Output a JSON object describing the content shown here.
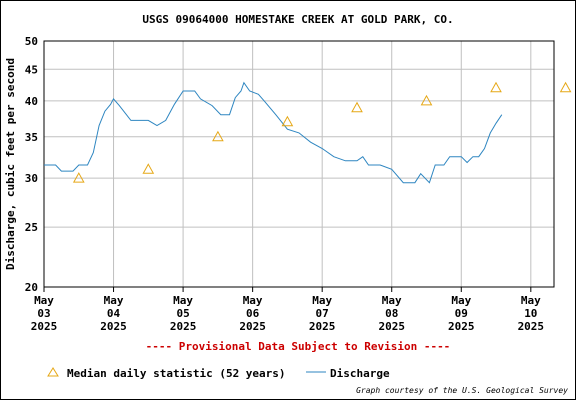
{
  "chart_data": {
    "type": "line",
    "title": "USGS 09064000 HOMESTAKE CREEK AT GOLD PARK, CO.",
    "ylabel": "Discharge, cubic feet per second",
    "yscale": "log",
    "ylim": [
      20,
      50
    ],
    "yticks": [
      20,
      25,
      30,
      35,
      40,
      45,
      50
    ],
    "xlim": [
      "2025-05-03T00:00",
      "2025-05-10T08:00"
    ],
    "grid": true,
    "xticks": [
      {
        "date": "2025-05-03",
        "month": "May",
        "day": "03",
        "year": "2025"
      },
      {
        "date": "2025-05-04",
        "month": "May",
        "day": "04",
        "year": "2025"
      },
      {
        "date": "2025-05-05",
        "month": "May",
        "day": "05",
        "year": "2025"
      },
      {
        "date": "2025-05-06",
        "month": "May",
        "day": "06",
        "year": "2025"
      },
      {
        "date": "2025-05-07",
        "month": "May",
        "day": "07",
        "year": "2025"
      },
      {
        "date": "2025-05-08",
        "month": "May",
        "day": "08",
        "year": "2025"
      },
      {
        "date": "2025-05-09",
        "month": "May",
        "day": "09",
        "year": "2025"
      },
      {
        "date": "2025-05-10",
        "month": "May",
        "day": "10",
        "year": "2025"
      }
    ],
    "series": [
      {
        "name": "Discharge",
        "color": "#2e86c1",
        "style": "line",
        "points": [
          [
            "2025-05-03T00:00",
            31.5
          ],
          [
            "2025-05-03T04:00",
            31.5
          ],
          [
            "2025-05-03T06:00",
            30.8
          ],
          [
            "2025-05-03T10:00",
            30.8
          ],
          [
            "2025-05-03T12:00",
            31.5
          ],
          [
            "2025-05-03T15:00",
            31.5
          ],
          [
            "2025-05-03T17:00",
            33.0
          ],
          [
            "2025-05-03T19:00",
            36.5
          ],
          [
            "2025-05-03T21:00",
            38.5
          ],
          [
            "2025-05-03T23:00",
            39.5
          ],
          [
            "2025-05-04T00:00",
            40.3
          ],
          [
            "2025-05-04T02:00",
            39.3
          ],
          [
            "2025-05-04T06:00",
            37.2
          ],
          [
            "2025-05-04T12:00",
            37.2
          ],
          [
            "2025-05-04T15:00",
            36.5
          ],
          [
            "2025-05-04T18:00",
            37.2
          ],
          [
            "2025-05-04T21:00",
            39.5
          ],
          [
            "2025-05-05T00:00",
            41.5
          ],
          [
            "2025-05-05T04:00",
            41.5
          ],
          [
            "2025-05-05T06:00",
            40.3
          ],
          [
            "2025-05-05T10:00",
            39.3
          ],
          [
            "2025-05-05T13:00",
            38.0
          ],
          [
            "2025-05-05T16:00",
            38.0
          ],
          [
            "2025-05-05T18:00",
            40.5
          ],
          [
            "2025-05-05T20:00",
            41.5
          ],
          [
            "2025-05-05T21:00",
            42.8
          ],
          [
            "2025-05-05T23:00",
            41.5
          ],
          [
            "2025-05-06T02:00",
            41.0
          ],
          [
            "2025-05-06T04:00",
            40.0
          ],
          [
            "2025-05-06T08:00",
            38.0
          ],
          [
            "2025-05-06T12:00",
            36.0
          ],
          [
            "2025-05-06T16:00",
            35.5
          ],
          [
            "2025-05-06T20:00",
            34.3
          ],
          [
            "2025-05-07T00:00",
            33.5
          ],
          [
            "2025-05-07T04:00",
            32.5
          ],
          [
            "2025-05-07T08:00",
            32.0
          ],
          [
            "2025-05-07T12:00",
            32.0
          ],
          [
            "2025-05-07T14:00",
            32.5
          ],
          [
            "2025-05-07T16:00",
            31.5
          ],
          [
            "2025-05-07T20:00",
            31.5
          ],
          [
            "2025-05-08T00:00",
            31.0
          ],
          [
            "2025-05-08T04:00",
            29.5
          ],
          [
            "2025-05-08T08:00",
            29.5
          ],
          [
            "2025-05-08T10:00",
            30.5
          ],
          [
            "2025-05-08T13:00",
            29.5
          ],
          [
            "2025-05-08T15:00",
            31.5
          ],
          [
            "2025-05-08T18:00",
            31.5
          ],
          [
            "2025-05-08T20:00",
            32.5
          ],
          [
            "2025-05-09T00:00",
            32.5
          ],
          [
            "2025-05-09T02:00",
            31.8
          ],
          [
            "2025-05-09T04:00",
            32.5
          ],
          [
            "2025-05-09T06:00",
            32.5
          ],
          [
            "2025-05-09T08:00",
            33.5
          ],
          [
            "2025-05-09T10:00",
            35.5
          ],
          [
            "2025-05-09T12:00",
            36.8
          ],
          [
            "2025-05-09T14:00",
            38.0
          ]
        ]
      },
      {
        "name": "Median daily statistic (52 years)",
        "color": "#e6a817",
        "style": "triangle",
        "points": [
          [
            "2025-05-03T12:00",
            30.0
          ],
          [
            "2025-05-04T12:00",
            31.0
          ],
          [
            "2025-05-05T12:00",
            35.0
          ],
          [
            "2025-05-06T12:00",
            37.0
          ],
          [
            "2025-05-07T12:00",
            39.0
          ],
          [
            "2025-05-08T12:00",
            40.0
          ],
          [
            "2025-05-09T12:00",
            42.0
          ],
          [
            "2025-05-10T12:00",
            42.0
          ]
        ]
      }
    ]
  },
  "provisional_text": "---- Provisional Data Subject to Revision ----",
  "legend": {
    "median_label": "Median daily statistic (52 years)",
    "discharge_label": "Discharge"
  },
  "credit": "Graph courtesy of the U.S. Geological Survey",
  "colors": {
    "provisional": "#cc0000",
    "grid": "#c0c0c0",
    "discharge": "#2e86c1",
    "median": "#e6a817"
  }
}
